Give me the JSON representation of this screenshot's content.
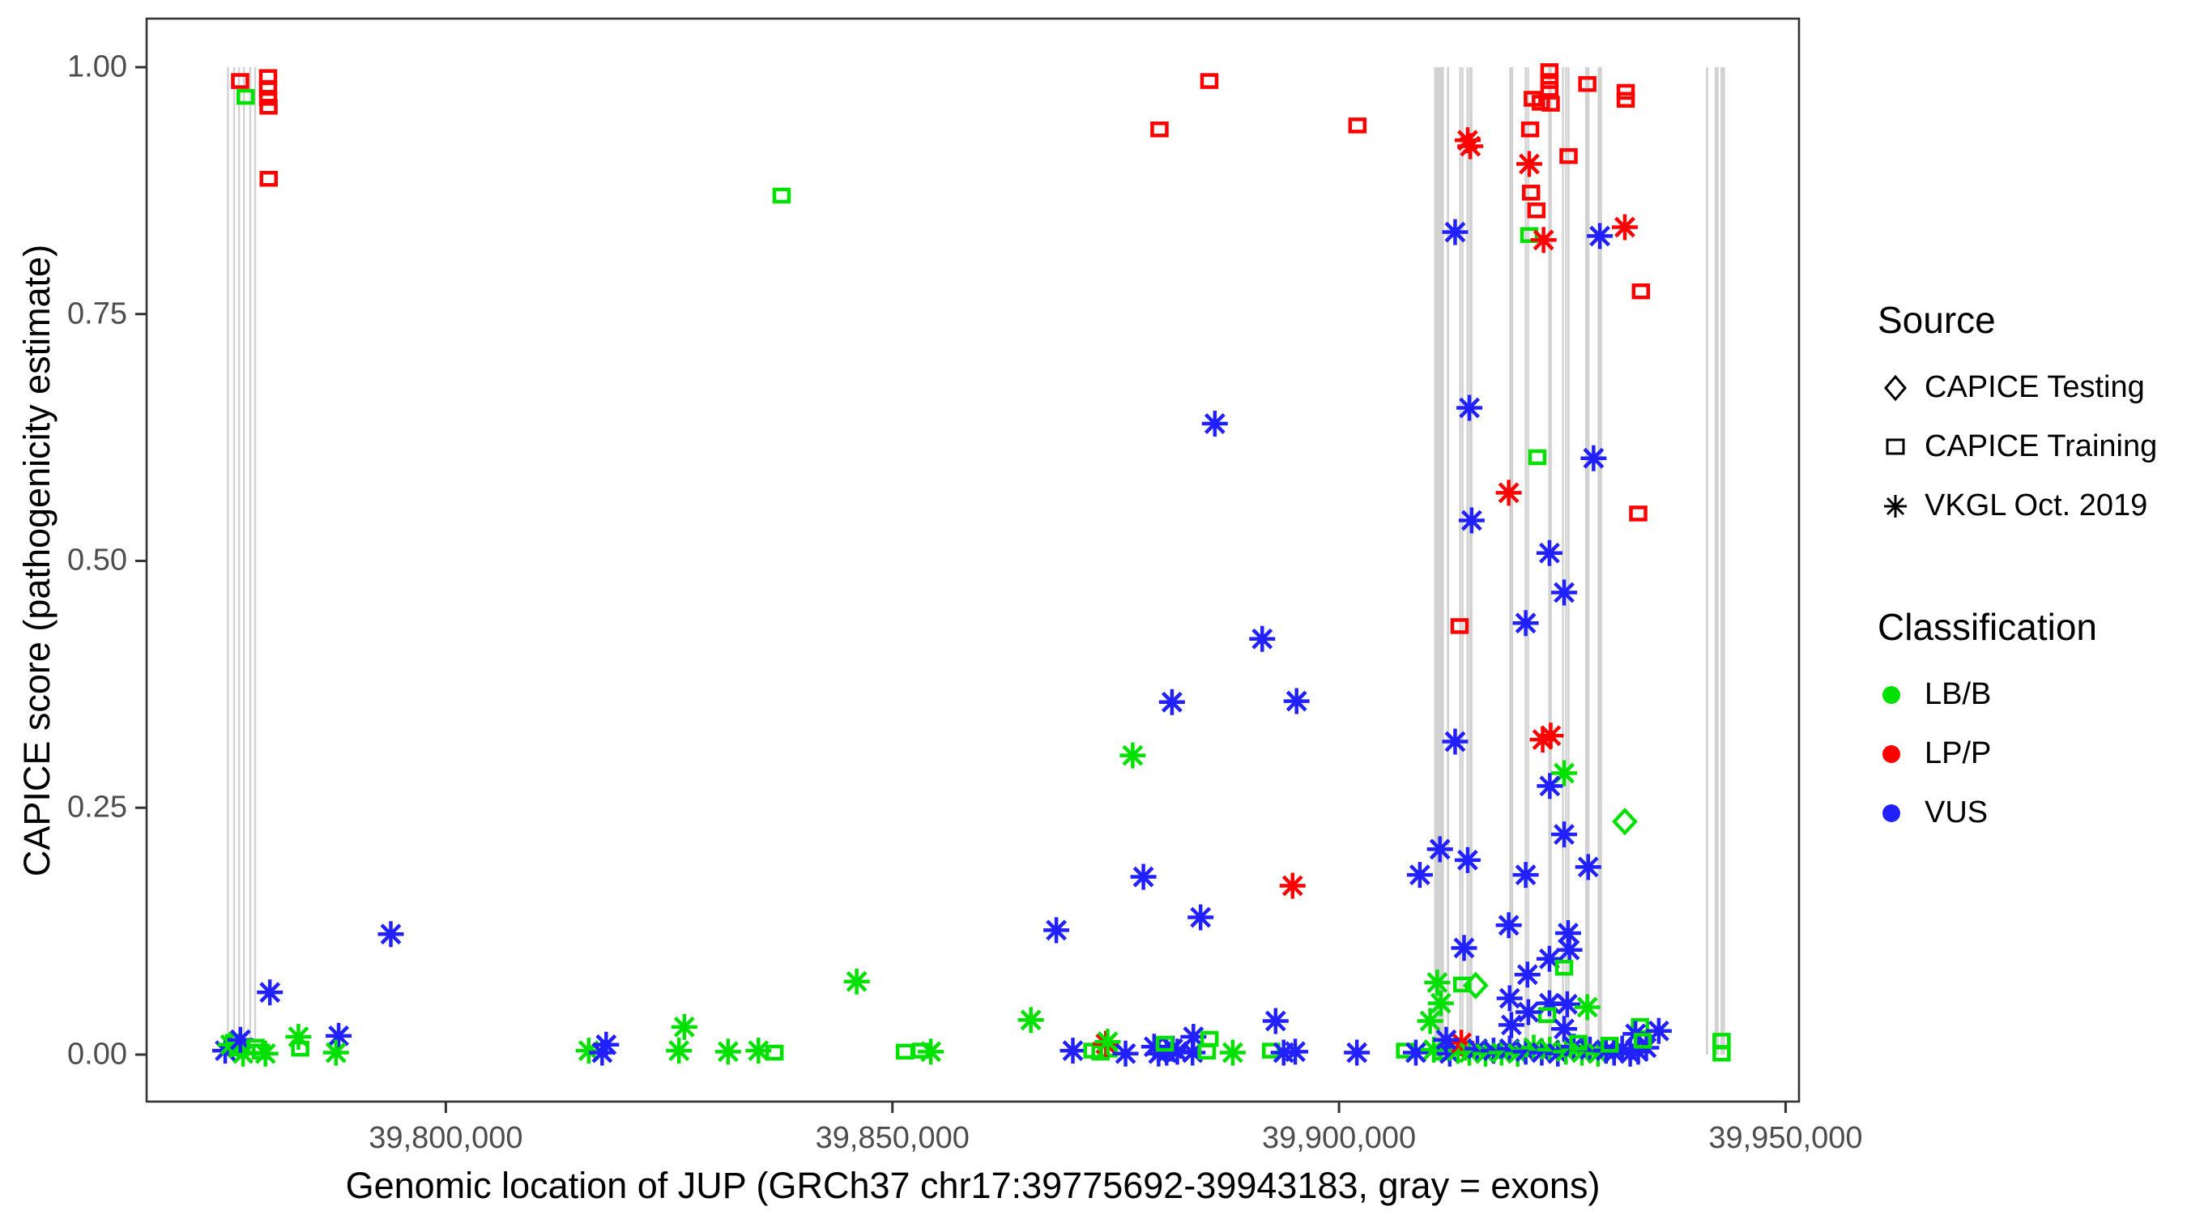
{
  "chart_data": {
    "type": "scatter",
    "xlabel": "Genomic location of JUP (GRCh37 chr17:39775692-39943183, gray = exons)",
    "ylabel": "CAPICE score (pathogenicity estimate)",
    "x_ticks": [
      {
        "value": 39800000,
        "label": "39,800,000"
      },
      {
        "value": 39850000,
        "label": "39,850,000"
      },
      {
        "value": 39900000,
        "label": "39,900,000"
      },
      {
        "value": 39950000,
        "label": "39,950,000"
      }
    ],
    "y_ticks": [
      {
        "value": 0.0,
        "label": "0.00"
      },
      {
        "value": 0.25,
        "label": "0.25"
      },
      {
        "value": 0.5,
        "label": "0.50"
      },
      {
        "value": 0.75,
        "label": "0.75"
      },
      {
        "value": 1.0,
        "label": "1.00"
      }
    ],
    "xlim": [
      39766500,
      39951500
    ],
    "ylim": [
      -0.0476,
      1.0492
    ],
    "exon_span": [
      0.0,
      1.0
    ],
    "exon_color": "#d2d2d2",
    "source_shapes": {
      "T": "diamond",
      "R": "square",
      "V": "asterisk"
    },
    "source_names": {
      "T": "CAPICE Testing",
      "R": "CAPICE Training",
      "V": "VKGL Oct. 2019"
    },
    "class_colors": {
      "B": "#00e100",
      "P": "#ff0000",
      "U": "#2121ff"
    },
    "class_names": {
      "B": "LB/B",
      "P": "LP/P",
      "U": "VUS"
    },
    "exons": [
      [
        39775600,
        200
      ],
      [
        39776300,
        200
      ],
      [
        39776850,
        200
      ],
      [
        39777400,
        200
      ],
      [
        39778100,
        200
      ],
      [
        39778650,
        200
      ],
      [
        39911200,
        1100
      ],
      [
        39912200,
        250
      ],
      [
        39913560,
        200
      ],
      [
        39913830,
        200
      ],
      [
        39914380,
        200
      ],
      [
        39914650,
        200
      ],
      [
        39914830,
        200
      ],
      [
        39919280,
        450
      ],
      [
        39920900,
        200
      ],
      [
        39921170,
        200
      ],
      [
        39923530,
        200
      ],
      [
        39923710,
        200
      ],
      [
        39925070,
        200
      ],
      [
        39925430,
        200
      ],
      [
        39925700,
        200
      ],
      [
        39927800,
        500
      ],
      [
        39929200,
        500
      ],
      [
        39941200,
        250
      ],
      [
        39942280,
        450
      ],
      [
        39942960,
        500
      ]
    ],
    "points": [
      [
        39775300,
        0.004,
        "V",
        "U"
      ],
      [
        39775900,
        0.01,
        "V",
        "B"
      ],
      [
        39776300,
        0.013,
        "R",
        "B"
      ],
      [
        39776900,
        0.006,
        "R",
        "B"
      ],
      [
        39777300,
        0.001,
        "V",
        "B"
      ],
      [
        39777000,
        0.015,
        "V",
        "U"
      ],
      [
        39776970,
        0.986,
        "R",
        "P"
      ],
      [
        39777590,
        0.97,
        "R",
        "B"
      ],
      [
        39780100,
        0.99,
        "R",
        "P"
      ],
      [
        39780100,
        0.979,
        "R",
        "P"
      ],
      [
        39780100,
        0.969,
        "R",
        "P"
      ],
      [
        39780150,
        0.96,
        "R",
        "P"
      ],
      [
        39780170,
        0.887,
        "R",
        "P"
      ],
      [
        39780300,
        0.063,
        "V",
        "U"
      ],
      [
        39778700,
        0.008,
        "R",
        "B"
      ],
      [
        39779300,
        0.003,
        "R",
        "B"
      ],
      [
        39779800,
        0.001,
        "V",
        "B"
      ],
      [
        39783500,
        0.018,
        "V",
        "B"
      ],
      [
        39783700,
        0.006,
        "R",
        "B"
      ],
      [
        39788000,
        0.019,
        "V",
        "U"
      ],
      [
        39787700,
        0.002,
        "V",
        "B"
      ],
      [
        39793840,
        0.122,
        "V",
        "U"
      ],
      [
        39816000,
        0.004,
        "V",
        "B"
      ],
      [
        39817500,
        0.002,
        "V",
        "U"
      ],
      [
        39817950,
        0.01,
        "V",
        "U"
      ],
      [
        39826700,
        0.028,
        "V",
        "B"
      ],
      [
        39826100,
        0.004,
        "V",
        "B"
      ],
      [
        39831600,
        0.003,
        "V",
        "B"
      ],
      [
        39835000,
        0.004,
        "V",
        "B"
      ],
      [
        39836800,
        0.002,
        "R",
        "B"
      ],
      [
        39837600,
        0.87,
        "R",
        "B"
      ],
      [
        39846000,
        0.074,
        "V",
        "B"
      ],
      [
        39851400,
        0.003,
        "R",
        "B"
      ],
      [
        39853200,
        0.004,
        "R",
        "B"
      ],
      [
        39854300,
        0.003,
        "V",
        "B"
      ],
      [
        39865500,
        0.035,
        "V",
        "B"
      ],
      [
        39870200,
        0.004,
        "V",
        "U"
      ],
      [
        39872400,
        0.004,
        "R",
        "B"
      ],
      [
        39873300,
        0.002,
        "R",
        "B"
      ],
      [
        39874200,
        0.005,
        "R",
        "B"
      ],
      [
        39873900,
        0.011,
        "V",
        "P"
      ],
      [
        39874100,
        0.013,
        "V",
        "B"
      ],
      [
        39876100,
        0.001,
        "V",
        "U"
      ],
      [
        39879300,
        0.008,
        "V",
        "U"
      ],
      [
        39879800,
        0.001,
        "V",
        "U"
      ],
      [
        39880700,
        0.002,
        "V",
        "U"
      ],
      [
        39881400,
        0.006,
        "V",
        "U"
      ],
      [
        39881900,
        0.003,
        "V",
        "U"
      ],
      [
        39880500,
        0.011,
        "R",
        "B"
      ],
      [
        39883700,
        0.018,
        "V",
        "U"
      ],
      [
        39883600,
        0.002,
        "V",
        "U"
      ],
      [
        39885500,
        0.016,
        "R",
        "B"
      ],
      [
        39885200,
        0.003,
        "R",
        "B"
      ],
      [
        39888100,
        0.002,
        "V",
        "B"
      ],
      [
        39892900,
        0.034,
        "V",
        "U"
      ],
      [
        39892400,
        0.004,
        "R",
        "B"
      ],
      [
        39893800,
        0.002,
        "V",
        "U"
      ],
      [
        39895100,
        0.003,
        "V",
        "U"
      ],
      [
        39902000,
        0.002,
        "V",
        "U"
      ],
      [
        39907400,
        0.004,
        "R",
        "B"
      ],
      [
        39908600,
        0.002,
        "V",
        "U"
      ],
      [
        39879900,
        0.937,
        "R",
        "P"
      ],
      [
        39885480,
        0.986,
        "R",
        "P"
      ],
      [
        39902060,
        0.941,
        "R",
        "P"
      ],
      [
        39886100,
        0.639,
        "V",
        "U"
      ],
      [
        39891400,
        0.421,
        "V",
        "U"
      ],
      [
        39881300,
        0.357,
        "V",
        "U"
      ],
      [
        39895250,
        0.358,
        "V",
        "U"
      ],
      [
        39878100,
        0.18,
        "V",
        "U"
      ],
      [
        39884500,
        0.139,
        "V",
        "U"
      ],
      [
        39894800,
        0.171,
        "V",
        "P"
      ],
      [
        39876900,
        0.303,
        "V",
        "B"
      ],
      [
        39868350,
        0.126,
        "V",
        "U"
      ],
      [
        39914400,
        0.926,
        "V",
        "P"
      ],
      [
        39914700,
        0.92,
        "V",
        "P"
      ],
      [
        39913000,
        0.833,
        "V",
        "U"
      ],
      [
        39923560,
        0.996,
        "R",
        "P"
      ],
      [
        39923560,
        0.986,
        "R",
        "P"
      ],
      [
        39923560,
        0.978,
        "R",
        "P"
      ],
      [
        39921700,
        0.968,
        "R",
        "P"
      ],
      [
        39922600,
        0.964,
        "R",
        "P"
      ],
      [
        39923700,
        0.963,
        "R",
        "P"
      ],
      [
        39927800,
        0.983,
        "R",
        "P"
      ],
      [
        39932100,
        0.975,
        "R",
        "P"
      ],
      [
        39932100,
        0.967,
        "R",
        "P"
      ],
      [
        39921400,
        0.937,
        "R",
        "P"
      ],
      [
        39921300,
        0.902,
        "V",
        "P"
      ],
      [
        39925700,
        0.91,
        "R",
        "P"
      ],
      [
        39921500,
        0.873,
        "R",
        "P"
      ],
      [
        39922100,
        0.855,
        "R",
        "P"
      ],
      [
        39921300,
        0.83,
        "R",
        "B"
      ],
      [
        39922900,
        0.825,
        "V",
        "P"
      ],
      [
        39929200,
        0.829,
        "V",
        "U"
      ],
      [
        39932000,
        0.838,
        "V",
        "P"
      ],
      [
        39933800,
        0.773,
        "R",
        "P"
      ],
      [
        39914600,
        0.655,
        "V",
        "U"
      ],
      [
        39922200,
        0.605,
        "R",
        "B"
      ],
      [
        39928500,
        0.604,
        "V",
        "U"
      ],
      [
        39919000,
        0.569,
        "V",
        "P"
      ],
      [
        39914850,
        0.541,
        "V",
        "U"
      ],
      [
        39933500,
        0.548,
        "R",
        "P"
      ],
      [
        39923560,
        0.508,
        "V",
        "U"
      ],
      [
        39925200,
        0.468,
        "V",
        "U"
      ],
      [
        39913500,
        0.434,
        "R",
        "P"
      ],
      [
        39920900,
        0.437,
        "V",
        "U"
      ],
      [
        39913000,
        0.317,
        "V",
        "U"
      ],
      [
        39922800,
        0.319,
        "V",
        "P"
      ],
      [
        39923700,
        0.323,
        "V",
        "P"
      ],
      [
        39925200,
        0.285,
        "V",
        "B"
      ],
      [
        39923600,
        0.272,
        "V",
        "U"
      ],
      [
        39932000,
        0.236,
        "T",
        "B"
      ],
      [
        39925200,
        0.223,
        "V",
        "U"
      ],
      [
        39911300,
        0.208,
        "V",
        "U"
      ],
      [
        39914400,
        0.197,
        "V",
        "U"
      ],
      [
        39909050,
        0.182,
        "V",
        "U"
      ],
      [
        39920900,
        0.182,
        "V",
        "U"
      ],
      [
        39927900,
        0.19,
        "V",
        "U"
      ],
      [
        39919000,
        0.131,
        "V",
        "U"
      ],
      [
        39925650,
        0.123,
        "V",
        "U"
      ],
      [
        39925800,
        0.106,
        "V",
        "U"
      ],
      [
        39923560,
        0.097,
        "V",
        "U"
      ],
      [
        39925200,
        0.088,
        "R",
        "B"
      ],
      [
        39921100,
        0.081,
        "V",
        "U"
      ],
      [
        39919100,
        0.057,
        "V",
        "U"
      ],
      [
        39923560,
        0.052,
        "V",
        "U"
      ],
      [
        39925550,
        0.051,
        "V",
        "U"
      ],
      [
        39927800,
        0.048,
        "V",
        "B"
      ],
      [
        39923300,
        0.04,
        "R",
        "B"
      ],
      [
        39921200,
        0.043,
        "V",
        "U"
      ],
      [
        39919300,
        0.03,
        "V",
        "U"
      ],
      [
        39925200,
        0.026,
        "V",
        "U"
      ],
      [
        39933700,
        0.029,
        "R",
        "B"
      ],
      [
        39935800,
        0.024,
        "V",
        "U"
      ],
      [
        39933200,
        0.021,
        "V",
        "U"
      ],
      [
        39914000,
        0.108,
        "V",
        "U"
      ],
      [
        39911000,
        0.073,
        "V",
        "B"
      ],
      [
        39913800,
        0.071,
        "R",
        "B"
      ],
      [
        39915300,
        0.07,
        "T",
        "B"
      ],
      [
        39911400,
        0.052,
        "V",
        "B"
      ],
      [
        39910200,
        0.034,
        "V",
        "B"
      ],
      [
        39910600,
        0.005,
        "V",
        "B"
      ],
      [
        39911500,
        0.002,
        "R",
        "B"
      ],
      [
        39912400,
        0.001,
        "V",
        "U"
      ],
      [
        39913300,
        0.004,
        "V",
        "B"
      ],
      [
        39913700,
        0.012,
        "V",
        "P"
      ],
      [
        39914600,
        0.002,
        "V",
        "B"
      ],
      [
        39915500,
        0.006,
        "V",
        "U"
      ],
      [
        39912000,
        0.015,
        "V",
        "U"
      ],
      [
        39916400,
        0.001,
        "V",
        "B"
      ],
      [
        39917300,
        0.004,
        "V",
        "U"
      ],
      [
        39918200,
        0.002,
        "V",
        "B"
      ],
      [
        39919100,
        0.006,
        "V",
        "U"
      ],
      [
        39920000,
        0.001,
        "V",
        "B"
      ],
      [
        39920900,
        0.003,
        "V",
        "U"
      ],
      [
        39921800,
        0.007,
        "V",
        "B"
      ],
      [
        39922700,
        0.002,
        "V",
        "U"
      ],
      [
        39923600,
        0.005,
        "V",
        "B"
      ],
      [
        39924500,
        0.001,
        "V",
        "U"
      ],
      [
        39925400,
        0.003,
        "V",
        "B"
      ],
      [
        39926300,
        0.008,
        "V",
        "U"
      ],
      [
        39927200,
        0.002,
        "V",
        "B"
      ],
      [
        39928100,
        0.005,
        "V",
        "U"
      ],
      [
        39929000,
        0.001,
        "V",
        "B"
      ],
      [
        39929900,
        0.004,
        "V",
        "U"
      ],
      [
        39930800,
        0.002,
        "V",
        "U"
      ],
      [
        39931700,
        0.006,
        "V",
        "U"
      ],
      [
        39932600,
        0.001,
        "V",
        "U"
      ],
      [
        39933500,
        0.003,
        "V",
        "U"
      ],
      [
        39934400,
        0.007,
        "V",
        "U"
      ],
      [
        39926800,
        0.012,
        "R",
        "B"
      ],
      [
        39930300,
        0.01,
        "R",
        "B"
      ],
      [
        39934000,
        0.014,
        "R",
        "B"
      ],
      [
        39942830,
        0.014,
        "R",
        "B"
      ],
      [
        39942830,
        0.001,
        "R",
        "B"
      ]
    ]
  },
  "legend": {
    "source": {
      "title": "Source",
      "items": [
        {
          "label": "CAPICE Testing",
          "shape": "diamond"
        },
        {
          "label": "CAPICE Training",
          "shape": "square"
        },
        {
          "label": "VKGL Oct. 2019",
          "shape": "asterisk"
        }
      ]
    },
    "classification": {
      "title": "Classification",
      "items": [
        {
          "label": "LB/B",
          "color": "#00e100"
        },
        {
          "label": "LP/P",
          "color": "#ff0000"
        },
        {
          "label": "VUS",
          "color": "#2121ff"
        }
      ]
    }
  }
}
